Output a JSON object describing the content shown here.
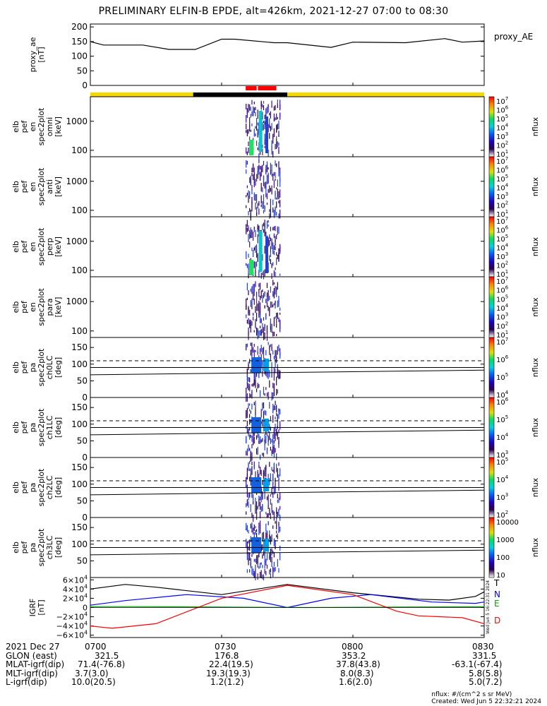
{
  "title": "PRELIMINARY ELFIN-B EPDE, alt=426km, 2021-12-27 07:00 to 08:30",
  "chart_data": {
    "type": "heatmap",
    "time_range": [
      "07:00",
      "08:30"
    ],
    "panels": [
      {
        "id": "proxy_ae",
        "ylabel": [
          "proxy_ae",
          "[nT]"
        ],
        "yticks": [
          "200",
          "150",
          "100",
          "50",
          "0"
        ],
        "ylim": [
          0,
          210
        ],
        "legend": "proxy_AE",
        "series": [
          {
            "name": "proxy_AE",
            "x_min": [
              0,
              3,
              6,
              12,
              18,
              24,
              30,
              33,
              42,
              45,
              55,
              60,
              72,
              81,
              85,
              90
            ],
            "y": [
              150,
              138,
              138,
              138,
              123,
              123,
              158,
              158,
              146,
              146,
              130,
              148,
              146,
              160,
              148,
              152
            ]
          }
        ]
      },
      {
        "id": "omni",
        "ylabel": [
          "elb",
          "pef",
          "en",
          "spec2plot",
          "omni",
          "[keV]"
        ],
        "yticks": [
          "1000",
          "100"
        ],
        "ylim": [
          60,
          7000
        ],
        "log": true,
        "cbar": {
          "label": "nflux",
          "ticks": [
            "10^7",
            "10^6",
            "10^5",
            "10^4",
            "10^3",
            "10^2",
            "10^1"
          ]
        }
      },
      {
        "id": "anti",
        "ylabel": [
          "elb",
          "pef",
          "en",
          "spec2plot",
          "anti",
          "[keV]"
        ],
        "yticks": [
          "1000",
          "100"
        ],
        "ylim": [
          60,
          7000
        ],
        "log": true,
        "cbar": {
          "label": "nflux",
          "ticks": [
            "10^7",
            "10^6",
            "10^5",
            "10^4",
            "10^3",
            "10^2",
            "10^1"
          ]
        }
      },
      {
        "id": "perp",
        "ylabel": [
          "elb",
          "pef",
          "en",
          "spec2plot",
          "perp",
          "[keV]"
        ],
        "yticks": [
          "1000",
          "100"
        ],
        "ylim": [
          60,
          7000
        ],
        "log": true,
        "cbar": {
          "label": "nflux",
          "ticks": [
            "10^7",
            "10^6",
            "10^5",
            "10^4",
            "10^3",
            "10^2",
            "10^1"
          ]
        }
      },
      {
        "id": "para",
        "ylabel": [
          "elb",
          "pef",
          "en",
          "spec2plot",
          "para",
          "[keV]"
        ],
        "yticks": [
          "1000",
          "100"
        ],
        "ylim": [
          60,
          7000
        ],
        "log": true,
        "cbar": {
          "label": "nflux",
          "ticks": [
            "10^7",
            "10^6",
            "10^5",
            "10^4",
            "10^3",
            "10^2",
            "10^1"
          ]
        }
      },
      {
        "id": "ch0LC",
        "ylabel": [
          "elb",
          "pef",
          "pa",
          "spec2plot",
          "ch0LC",
          "[deg]"
        ],
        "yticks": [
          "150",
          "100",
          "50",
          "0"
        ],
        "ylim": [
          0,
          180
        ],
        "cbar": {
          "label": "nflux",
          "ticks": [
            "10^7",
            "10^6",
            "10^5",
            "10^4"
          ]
        }
      },
      {
        "id": "ch1LC",
        "ylabel": [
          "elb",
          "pef",
          "pa",
          "spec2plot",
          "ch1LC",
          "[deg]"
        ],
        "yticks": [
          "150",
          "100",
          "50",
          "0"
        ],
        "ylim": [
          0,
          180
        ],
        "cbar": {
          "label": "nflux",
          "ticks": [
            "10^6",
            "10^5",
            "10^4",
            "10^3"
          ]
        }
      },
      {
        "id": "ch2LC",
        "ylabel": [
          "elb",
          "pef",
          "pa",
          "spec2plot",
          "ch2LC",
          "[deg]"
        ],
        "yticks": [
          "150",
          "100",
          "50",
          "0"
        ],
        "ylim": [
          0,
          180
        ],
        "cbar": {
          "label": "nflux",
          "ticks": [
            "10^5",
            "10^4",
            "10^3",
            "10^2"
          ]
        }
      },
      {
        "id": "ch3LC",
        "ylabel": [
          "elb",
          "pef",
          "pa",
          "spec2plot",
          "ch3LC",
          "[deg]"
        ],
        "yticks": [
          "150",
          "100",
          "50"
        ],
        "ylim": [
          0,
          180
        ],
        "cbar": {
          "label": "nflux",
          "ticks": [
            "10000",
            "1000",
            "100",
            "10"
          ]
        }
      },
      {
        "id": "igrf",
        "ylabel": [
          "IGRF",
          "[nT]"
        ],
        "yticks": [
          "6×10^4",
          "4×10^4",
          "2×10^4",
          "0",
          "−2×10^4",
          "−4×10^4",
          "−6×10^4"
        ],
        "ylim": [
          -65000,
          65000
        ],
        "series": [
          {
            "name": "T",
            "color": "#000000",
            "x_min": [
              0,
              8,
              15,
              30,
              45,
              60,
              75,
              82,
              88,
              90
            ],
            "y": [
              40000,
              50000,
              44000,
              28000,
              50000,
              32000,
              18000,
              16000,
              24000,
              34000
            ]
          },
          {
            "name": "N",
            "color": "#0000ff",
            "x_min": [
              0,
              8,
              22,
              35,
              45,
              55,
              64,
              78,
              88,
              90
            ],
            "y": [
              5000,
              15000,
              28000,
              20000,
              0,
              20000,
              28000,
              12000,
              9000,
              12000
            ]
          },
          {
            "name": "E",
            "color": "#00aa00",
            "x_min": [
              0,
              10,
              30,
              50,
              70,
              90
            ],
            "y": [
              2000,
              2000,
              1000,
              0,
              1000,
              1500
            ]
          },
          {
            "name": "D",
            "color": "#ff0000",
            "x_min": [
              0,
              5,
              15,
              30,
              45,
              60,
              70,
              75,
              85,
              90
            ],
            "y": [
              -40000,
              -45000,
              -35000,
              20000,
              48000,
              28000,
              -8000,
              -18000,
              -22000,
              -35000
            ]
          }
        ]
      }
    ],
    "orbit_bar": {
      "segments": [
        {
          "start_min": 0,
          "end_min": 23.5,
          "color": "#f5d800"
        },
        {
          "start_min": 23.5,
          "end_min": 45,
          "color": "#000000"
        },
        {
          "start_min": 45,
          "end_min": 90,
          "color": "#f5d800"
        }
      ],
      "marks": [
        {
          "start_min": 35.5,
          "end_min": 38,
          "color": "#ff0000"
        },
        {
          "start_min": 38.3,
          "end_min": 42.5,
          "color": "#ff0000"
        }
      ]
    },
    "pa_lines": {
      "dashed": 110,
      "solid_start": [
        90,
        68
      ],
      "solid_end": [
        90,
        82
      ]
    }
  },
  "axis_labels": {
    "row_labels": [
      "2021 Dec 27",
      "GLON (east)",
      "MLAT-igrf(dip)",
      "MLT-igrf(dip)",
      "L-igrf(dip)"
    ],
    "columns": [
      {
        "time": "0700",
        "values": [
          "321.5",
          "71.4(-76.8)",
          "3.7(3.0)",
          "10.0(20.5)"
        ]
      },
      {
        "time": "0730",
        "values": [
          "176.8",
          "22.4(19.5)",
          "19.3(19.3)",
          "1.2(1.2)"
        ]
      },
      {
        "time": "0800",
        "values": [
          "353.2",
          "37.8(43.8)",
          "8.0(8.3)",
          "1.6(2.0)"
        ]
      },
      {
        "time": "0830",
        "values": [
          "331.5",
          "-63.1(-67.4)",
          "5.8(5.8)",
          "5.0(7.2)"
        ]
      }
    ]
  },
  "notes": {
    "units": "nflux: #/(cm^2 s sr MeV)",
    "created": "Created: Wed Jun  5 22:32:21 2024",
    "side_stamp": "Wed Jun  5 16:22:31 2024"
  }
}
